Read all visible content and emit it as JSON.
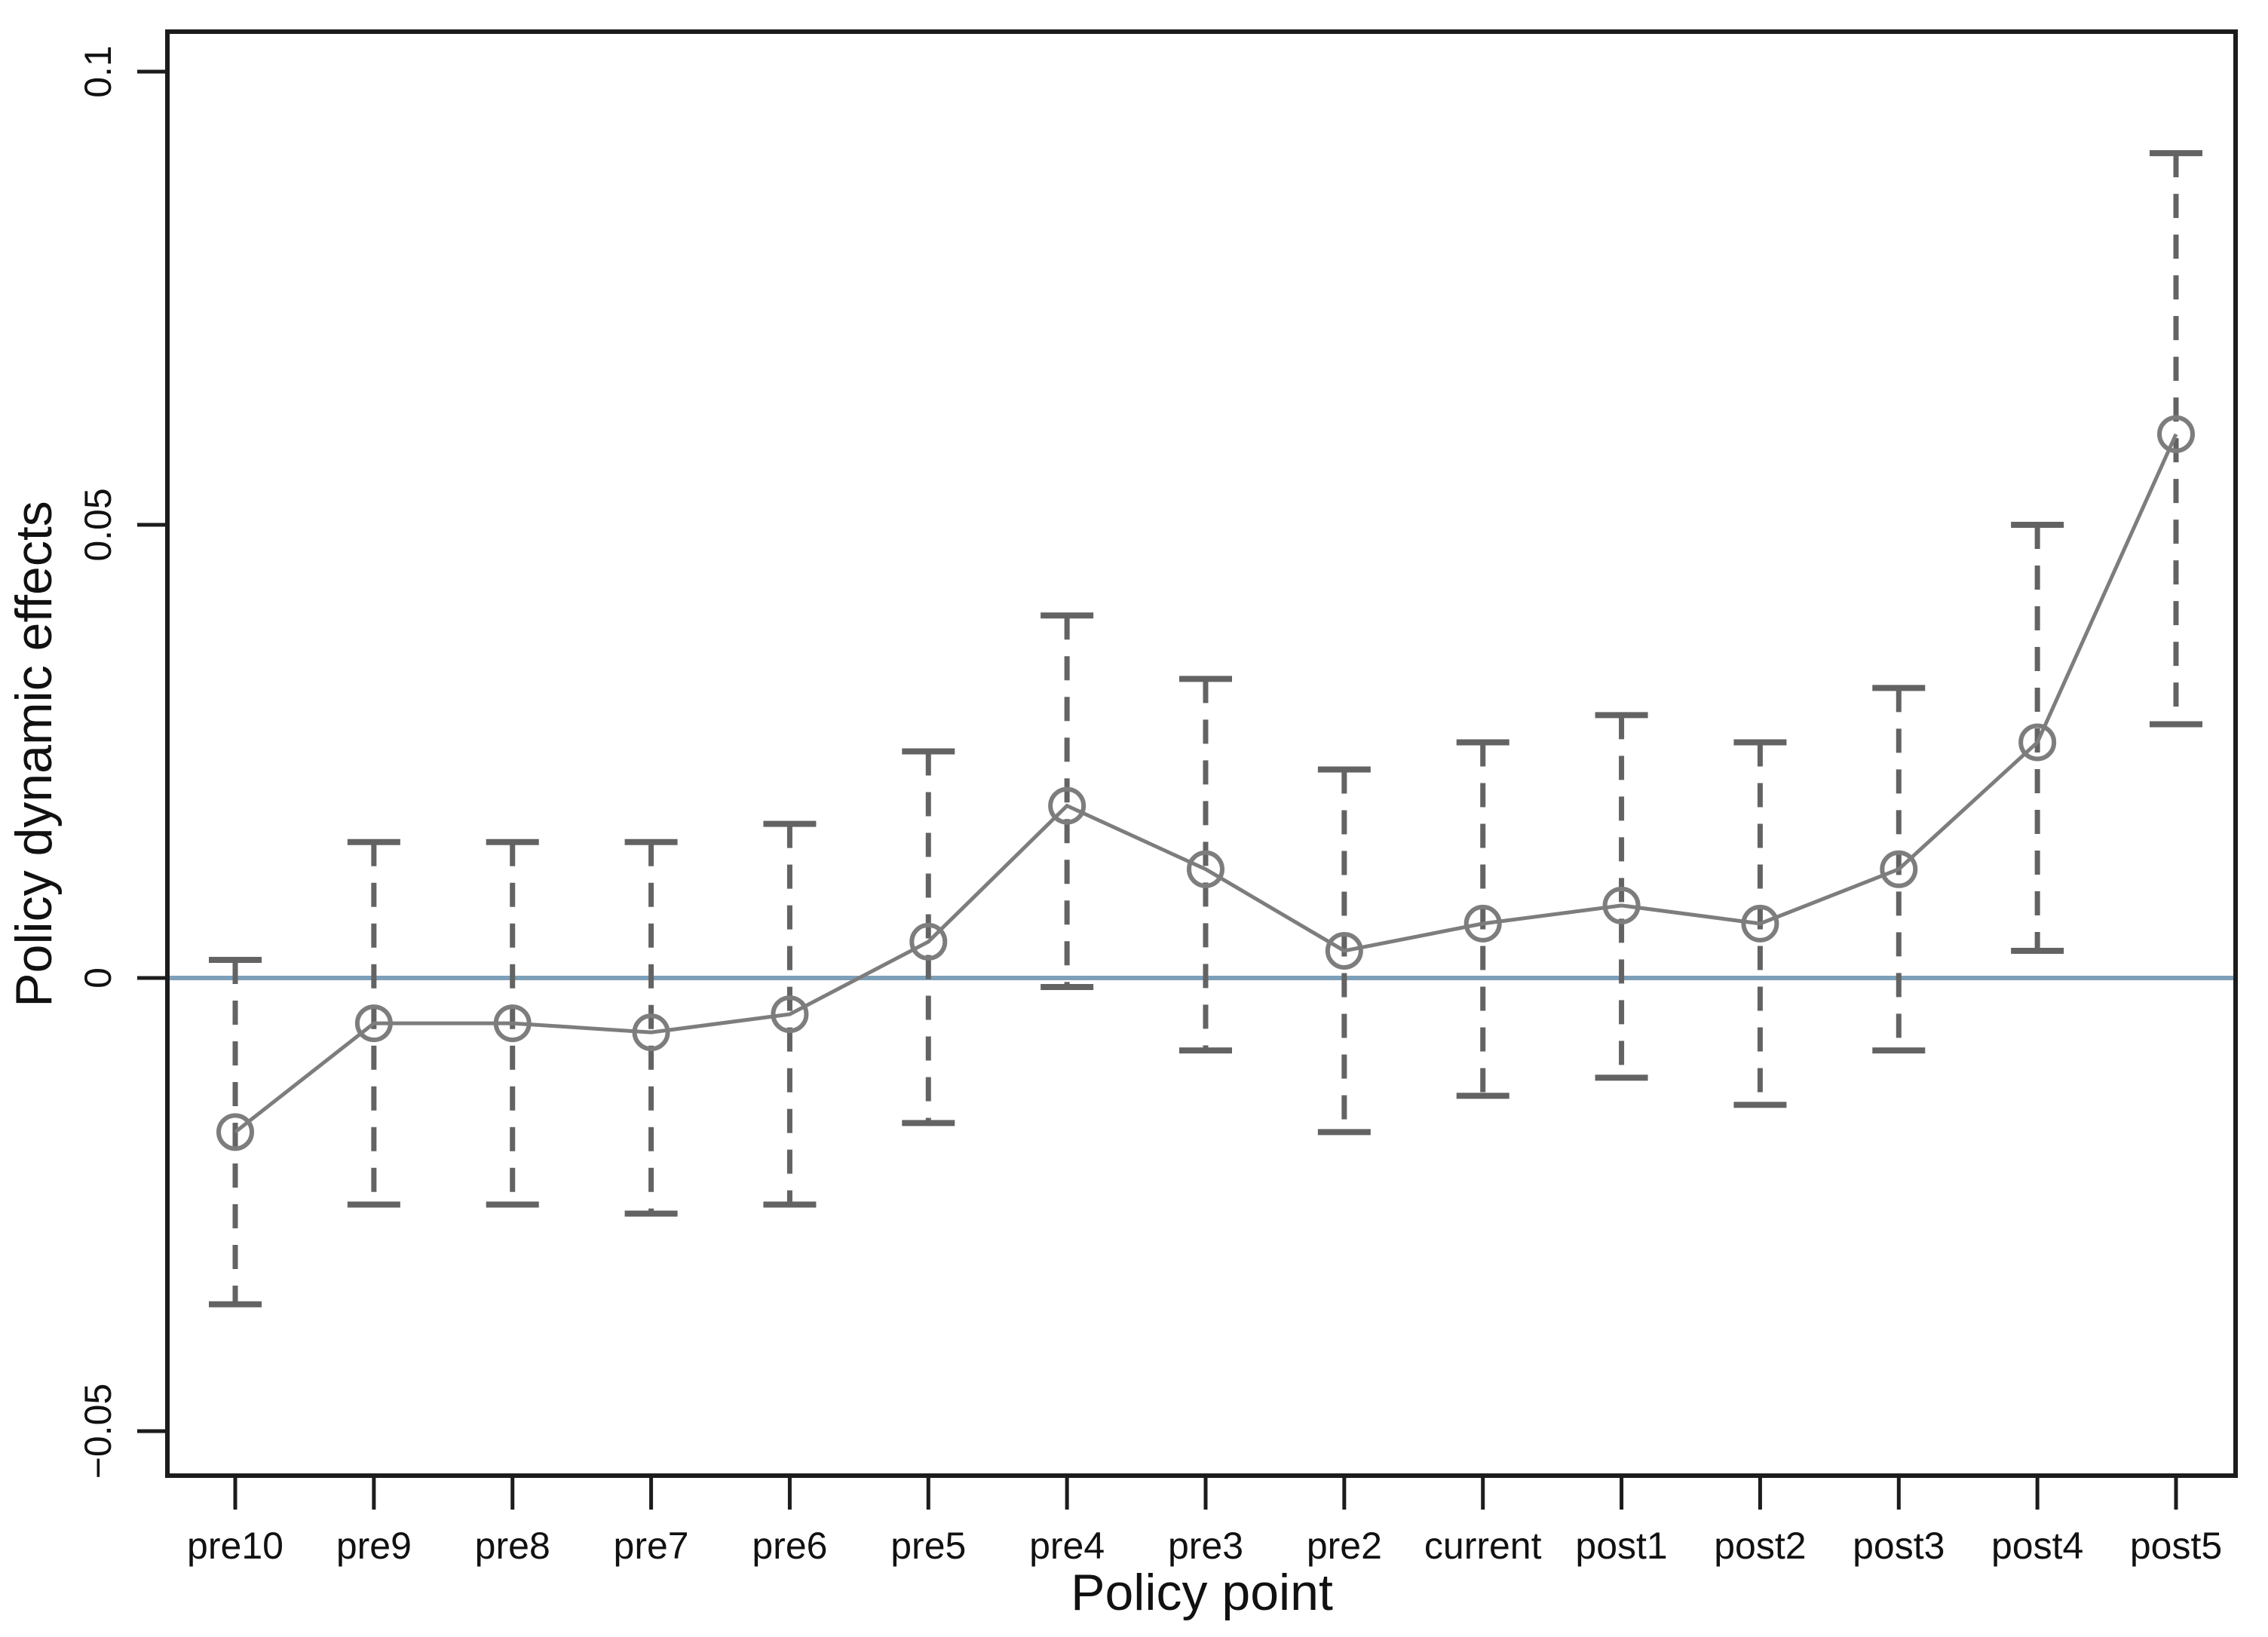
{
  "chart_data": {
    "type": "line",
    "title": "",
    "xlabel": "Policy point",
    "ylabel": "Policy dynamic effects",
    "categories": [
      "pre10",
      "pre9",
      "pre8",
      "pre7",
      "pre6",
      "pre5",
      "pre4",
      "pre3",
      "pre2",
      "current",
      "post1",
      "post2",
      "post3",
      "post4",
      "post5"
    ],
    "series": [
      {
        "name": "Policy dynamic effects",
        "marker": "open-circle",
        "values": [
          -0.017,
          -0.005,
          -0.005,
          -0.006,
          -0.004,
          0.004,
          0.019,
          0.012,
          0.003,
          0.006,
          0.008,
          0.006,
          0.012,
          0.026,
          0.06
        ],
        "ci_lower": [
          -0.036,
          -0.025,
          -0.025,
          -0.026,
          -0.025,
          -0.016,
          -0.001,
          -0.008,
          -0.017,
          -0.013,
          -0.011,
          -0.014,
          -0.008,
          0.003,
          0.028
        ],
        "ci_upper": [
          0.002,
          0.015,
          0.015,
          0.015,
          0.017,
          0.025,
          0.04,
          0.033,
          0.023,
          0.026,
          0.029,
          0.026,
          0.032,
          0.05,
          0.091
        ]
      }
    ],
    "y_ticks": [
      {
        "value": 0.1,
        "label": "0.1"
      },
      {
        "value": 0.05,
        "label": "0.05"
      },
      {
        "value": 0,
        "label": "0"
      },
      {
        "value": -0.05,
        "label": "−0.05"
      }
    ],
    "ylim": [
      -0.055,
      0.104
    ],
    "reference_line": {
      "value": 0
    },
    "legend": "none",
    "grid": "off",
    "colors": {
      "series": "#7d7d7d",
      "whisker": "#636363",
      "zero_line": "#7e9fb8",
      "spine": "#1c1c1c",
      "text": "#111111",
      "background": "#ffffff"
    }
  }
}
